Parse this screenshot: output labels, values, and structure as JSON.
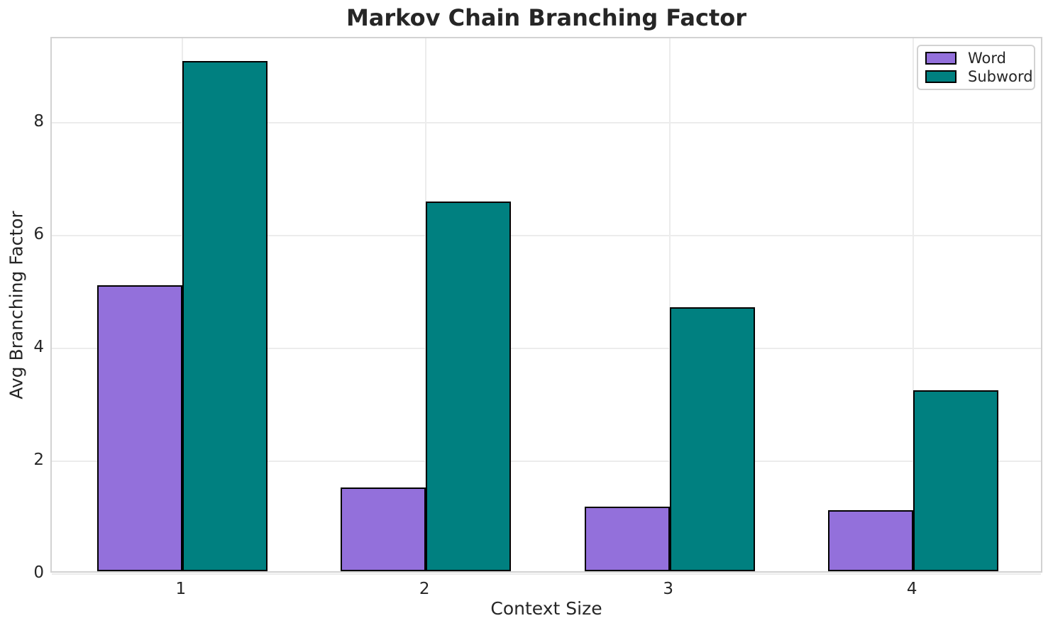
{
  "chart_data": {
    "type": "bar",
    "title": "Markov Chain Branching Factor",
    "xlabel": "Context Size",
    "ylabel": "Avg Branching Factor",
    "categories": [
      "1",
      "2",
      "3",
      "4"
    ],
    "series": [
      {
        "name": "Word",
        "color": "#9370DB",
        "values": [
          5.07,
          1.48,
          1.14,
          1.08
        ]
      },
      {
        "name": "Subword",
        "color": "#008080",
        "values": [
          9.05,
          6.55,
          4.68,
          3.21
        ]
      }
    ],
    "ylim": [
      0,
      9.5
    ],
    "yticks": [
      0,
      2,
      4,
      6,
      8
    ],
    "bar_width": 0.35,
    "bar_edge_color": "#000000",
    "grid": true,
    "grid_color": "#ececec",
    "spine_color": "#d2d2d2",
    "text_color": "#262626",
    "legend_position": "upper right",
    "legend_labels": [
      "Word",
      "Subword"
    ]
  }
}
